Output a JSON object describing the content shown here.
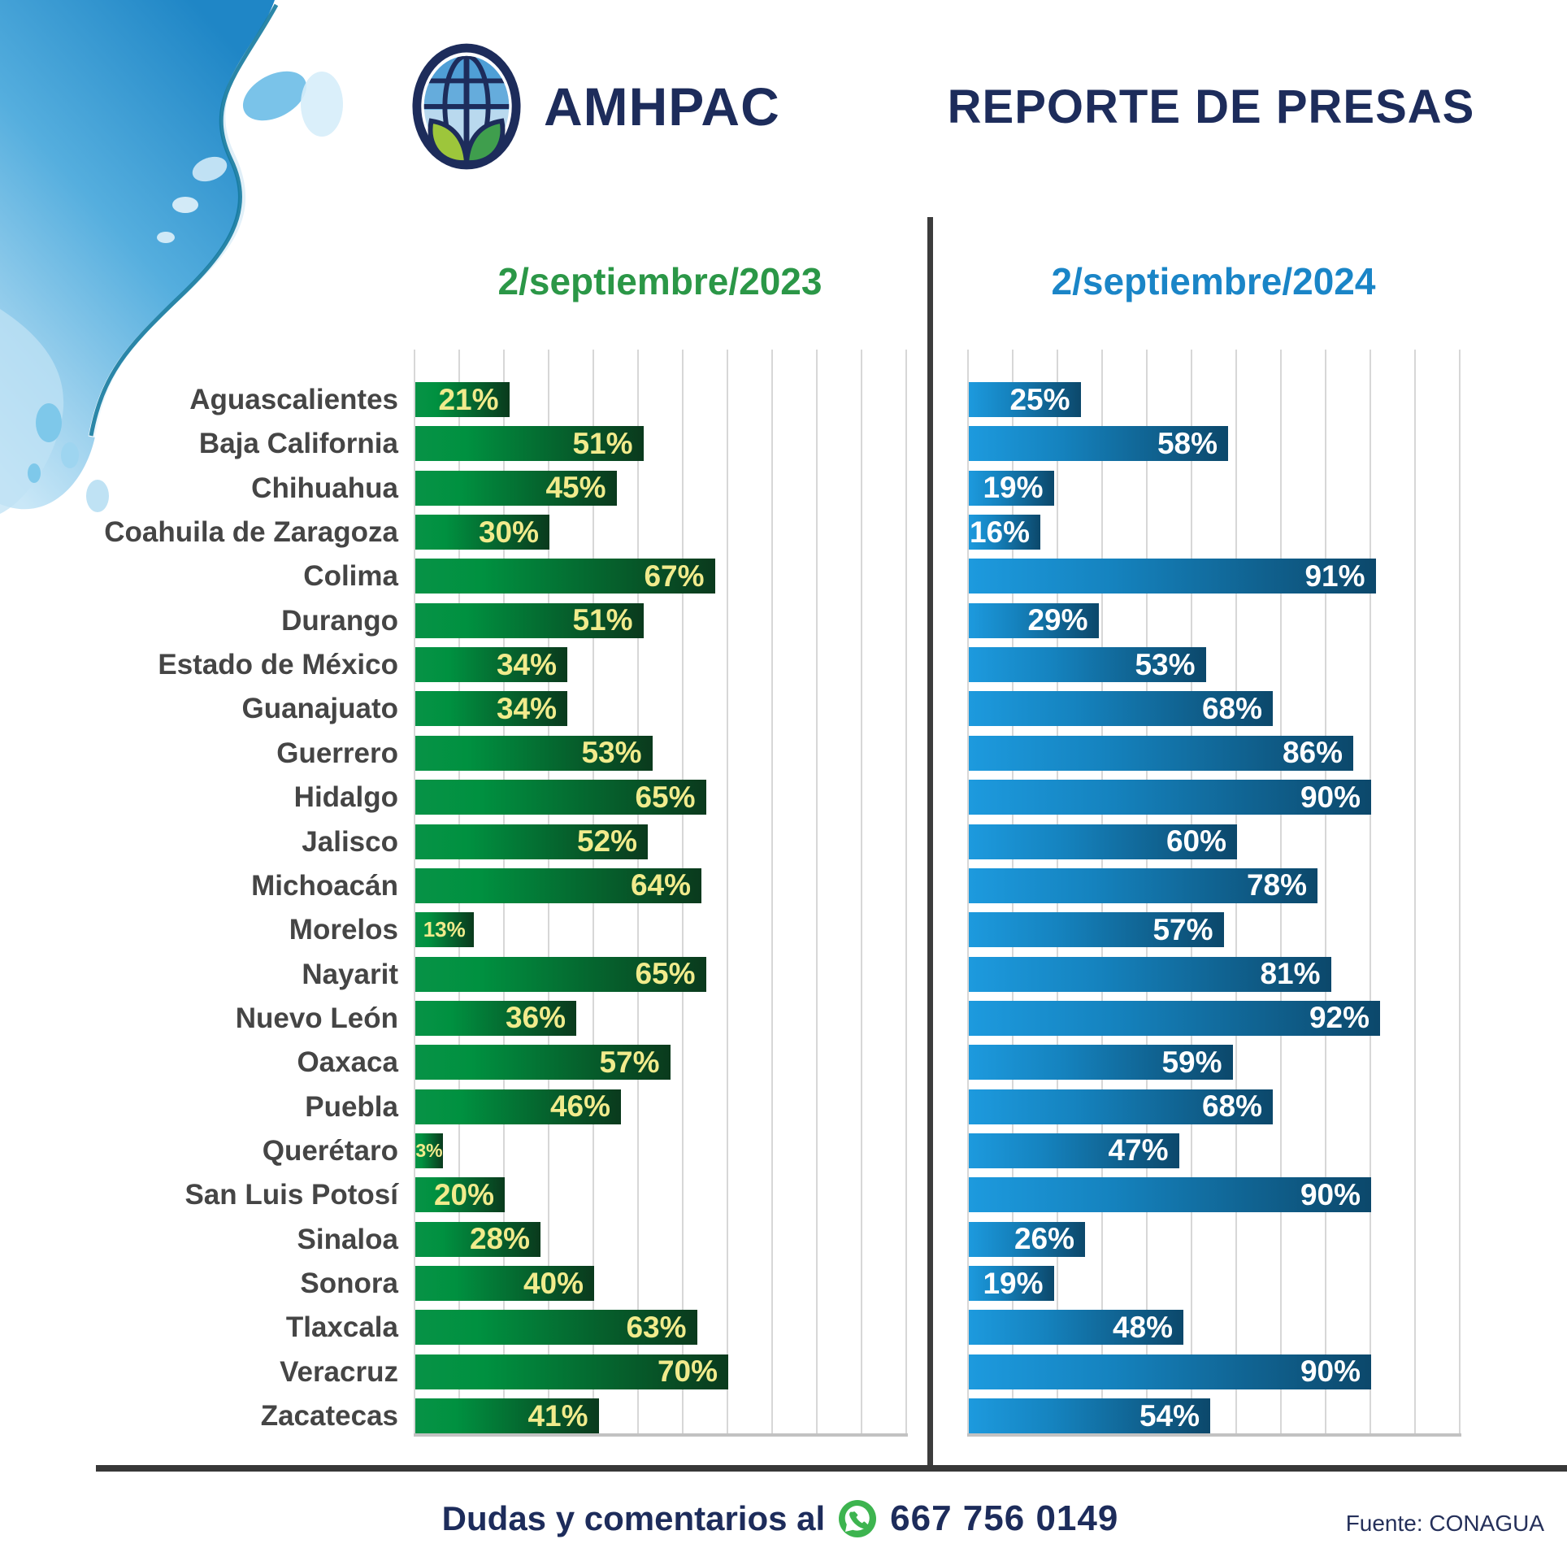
{
  "header": {
    "brand": "AMHPAC",
    "title": "REPORTE DE PRESAS"
  },
  "columns": {
    "left": {
      "date_prefix": "2/septiembre/",
      "year": "2023",
      "color": "#2b9747"
    },
    "right": {
      "date_prefix": "2/septiembre/",
      "year": "2024",
      "color": "#1a85c7"
    }
  },
  "chart_data": {
    "type": "bar",
    "orientation": "horizontal",
    "unit": "%",
    "xlim": [
      0,
      110
    ],
    "gridline_step": 10,
    "grid": "on",
    "categories": [
      "Aguascalientes",
      "Baja California",
      "Chihuahua",
      "Coahuila de Zaragoza",
      "Colima",
      "Durango",
      "Estado de México",
      "Guanajuato",
      "Guerrero",
      "Hidalgo",
      "Jalisco",
      "Michoacán",
      "Morelos",
      "Nayarit",
      "Nuevo León",
      "Oaxaca",
      "Puebla",
      "Querétaro",
      "San Luis Potosí",
      "Sinaloa",
      "Sonora",
      "Tlaxcala",
      "Veracruz",
      "Zacatecas"
    ],
    "series": [
      {
        "name": "2/septiembre/2023",
        "values": [
          21,
          51,
          45,
          30,
          67,
          51,
          34,
          34,
          53,
          65,
          52,
          64,
          13,
          65,
          36,
          57,
          46,
          3,
          20,
          28,
          40,
          63,
          70,
          41
        ],
        "gradient": [
          "#079246",
          "#0a3a1d"
        ],
        "value_label_color": "#f1eb8c"
      },
      {
        "name": "2/septiembre/2024",
        "values": [
          25,
          58,
          19,
          16,
          91,
          29,
          53,
          68,
          86,
          90,
          60,
          78,
          57,
          81,
          92,
          59,
          68,
          47,
          90,
          26,
          19,
          48,
          90,
          54
        ],
        "gradient": [
          "#1d9ade",
          "#0c486b"
        ],
        "value_label_color": "#ffffff"
      }
    ],
    "title": "REPORTE DE PRESAS",
    "source": "Fuente: CONAGUA"
  },
  "footer": {
    "contact_label": "Dudas y comentarios al",
    "phone": "667 756 0149",
    "source": "Fuente: CONAGUA"
  },
  "icons": {
    "logo": "amhpac-globe-logo",
    "whatsapp": "whatsapp-icon",
    "decoration": "water-splash"
  }
}
